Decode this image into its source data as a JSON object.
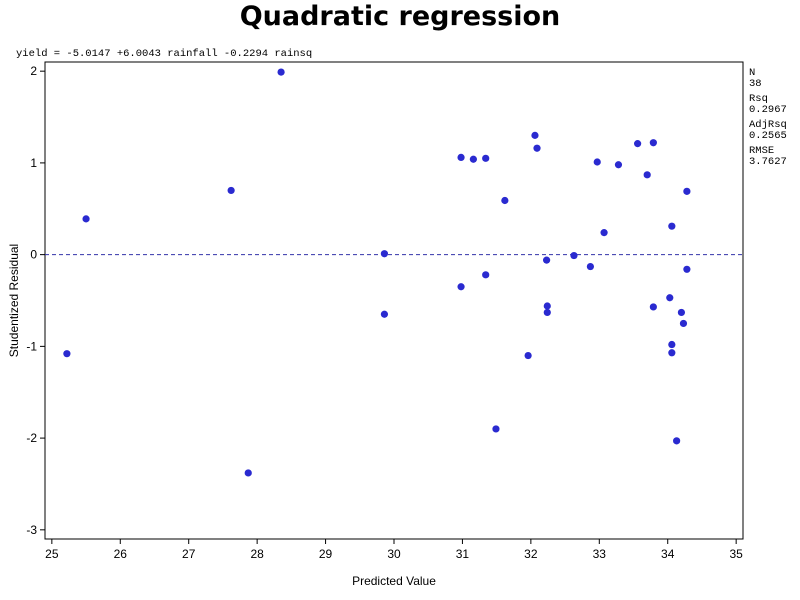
{
  "chart_data": {
    "type": "scatter",
    "title": "Quadratic regression",
    "subtitle": "yield = -5.0147 +6.0043 rainfall -0.2294 rainsq",
    "xlabel": "Predicted Value",
    "ylabel": "Studentized Residual",
    "xlim": [
      24.9,
      35.1
    ],
    "ylim": [
      -3.1,
      2.1
    ],
    "xticks": [
      25,
      26,
      27,
      28,
      29,
      30,
      31,
      32,
      33,
      34,
      35
    ],
    "yticks": [
      -3,
      -2,
      -1,
      0,
      1,
      2
    ],
    "reference_line": {
      "y": 0,
      "style": "dashed",
      "color": "#3333aa"
    },
    "marker_color": "#2a2ad0",
    "grid": false,
    "points": [
      {
        "x": 25.22,
        "y": -1.08
      },
      {
        "x": 25.5,
        "y": 0.39
      },
      {
        "x": 27.62,
        "y": 0.7
      },
      {
        "x": 27.87,
        "y": -2.38
      },
      {
        "x": 28.35,
        "y": 1.99
      },
      {
        "x": 29.86,
        "y": 0.01
      },
      {
        "x": 29.86,
        "y": -0.65
      },
      {
        "x": 30.98,
        "y": 1.06
      },
      {
        "x": 30.98,
        "y": -0.35
      },
      {
        "x": 31.16,
        "y": 1.04
      },
      {
        "x": 31.34,
        "y": 1.05
      },
      {
        "x": 31.34,
        "y": -0.22
      },
      {
        "x": 31.49,
        "y": -1.9
      },
      {
        "x": 31.62,
        "y": 0.59
      },
      {
        "x": 31.96,
        "y": -1.1
      },
      {
        "x": 32.06,
        "y": 1.3
      },
      {
        "x": 32.09,
        "y": 1.16
      },
      {
        "x": 32.23,
        "y": -0.06
      },
      {
        "x": 32.24,
        "y": -0.56
      },
      {
        "x": 32.24,
        "y": -0.63
      },
      {
        "x": 32.63,
        "y": -0.01
      },
      {
        "x": 32.87,
        "y": -0.13
      },
      {
        "x": 32.97,
        "y": 1.01
      },
      {
        "x": 33.07,
        "y": 0.24
      },
      {
        "x": 33.28,
        "y": 0.98
      },
      {
        "x": 33.56,
        "y": 1.21
      },
      {
        "x": 33.7,
        "y": 0.87
      },
      {
        "x": 33.79,
        "y": 1.22
      },
      {
        "x": 33.79,
        "y": -0.57
      },
      {
        "x": 34.03,
        "y": -0.47
      },
      {
        "x": 34.06,
        "y": 0.31
      },
      {
        "x": 34.06,
        "y": -0.98
      },
      {
        "x": 34.06,
        "y": -1.07
      },
      {
        "x": 34.13,
        "y": -2.03
      },
      {
        "x": 34.2,
        "y": -0.63
      },
      {
        "x": 34.23,
        "y": -0.75
      },
      {
        "x": 34.28,
        "y": 0.69
      },
      {
        "x": 34.28,
        "y": -0.16
      }
    ]
  },
  "stats": [
    {
      "label": "N",
      "value": "38"
    },
    {
      "label": "Rsq",
      "value": "0.2967"
    },
    {
      "label": "AdjRsq",
      "value": "0.2565"
    },
    {
      "label": "RMSE",
      "value": "3.7627"
    }
  ]
}
